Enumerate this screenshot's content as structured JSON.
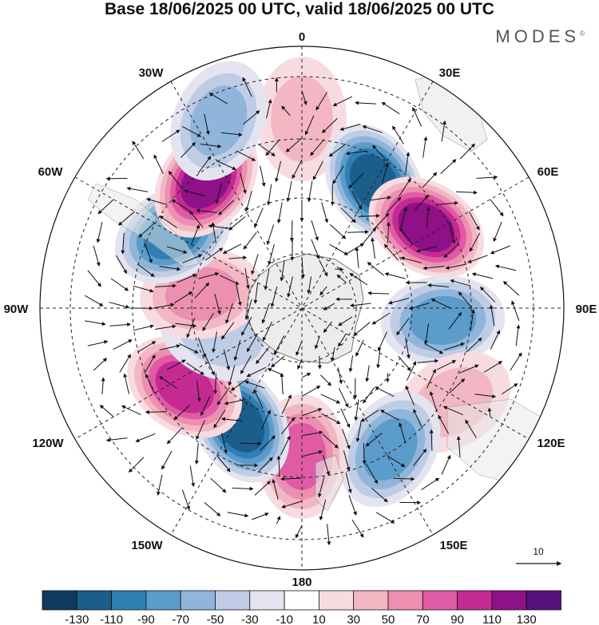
{
  "title": "Base 18/06/2025 00 UTC, valid 18/06/2025 00 UTC",
  "logo": "MODES",
  "logo_mark": "©",
  "longitude_labels": {
    "lon0": "0",
    "lon30e": "30E",
    "lon60e": "60E",
    "lon90e": "90E",
    "lon120e": "120E",
    "lon150e": "150E",
    "lon180": "180",
    "lon150w": "150W",
    "lon120w": "120W",
    "lon90w": "90W",
    "lon60w": "60W",
    "lon30w": "30W"
  },
  "reference_vector": "10",
  "colorbar": {
    "colors": [
      "#0f3a5e",
      "#1b5e8c",
      "#2f7fb5",
      "#5b9ccb",
      "#8fb6da",
      "#bfcce5",
      "#e4e4f0",
      "#ffffff",
      "#f8dbe0",
      "#f3b7c4",
      "#ec8fb0",
      "#e05aa5",
      "#c42a92",
      "#8e1187",
      "#55107a"
    ],
    "ticks": [
      "-130",
      "-110",
      "-90",
      "-70",
      "-50",
      "-30",
      "-10",
      "10",
      "30",
      "50",
      "70",
      "90",
      "110",
      "130"
    ]
  },
  "map": {
    "projection": "south-polar-stereographic",
    "field": "geopotential height anomaly with wind vectors",
    "anomaly_centers": [
      {
        "lon": 0,
        "lat": -32,
        "value": 20
      },
      {
        "lon": 30,
        "lat": -44,
        "value": -110
      },
      {
        "lon": 57,
        "lat": -43,
        "value": 110
      },
      {
        "lon": 95,
        "lat": -45,
        "value": -60
      },
      {
        "lon": 122,
        "lat": -35,
        "value": 30
      },
      {
        "lon": 148,
        "lat": -38,
        "value": -60
      },
      {
        "lon": 180,
        "lat": -43,
        "value": 70
      },
      {
        "lon": -152,
        "lat": -48,
        "value": -100
      },
      {
        "lon": -124,
        "lat": -45,
        "value": 80
      },
      {
        "lon": -108,
        "lat": -62,
        "value": -20
      },
      {
        "lon": -82,
        "lat": -57,
        "value": 40
      },
      {
        "lon": -60,
        "lat": -43,
        "value": -90
      },
      {
        "lon": -37,
        "lat": -40,
        "value": 95
      },
      {
        "lon": -24,
        "lat": -28,
        "value": -40
      }
    ]
  }
}
